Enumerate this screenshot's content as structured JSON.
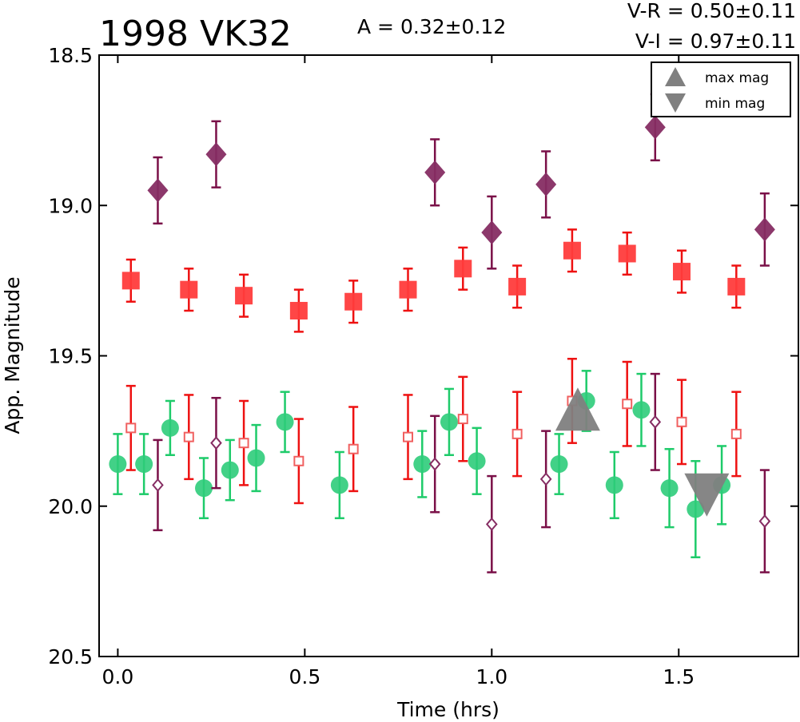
{
  "chart_data": {
    "type": "scatter",
    "title": "1998 VK32",
    "annotations": {
      "amplitude": "A  = 0.32±0.12",
      "v_minus_r": "V-R = 0.50±0.11",
      "v_minus_i": "V-I  = 0.97±0.11"
    },
    "xlabel": "Time (hrs)",
    "ylabel": "App. Magnitude",
    "xlim": [
      -0.05,
      1.82
    ],
    "ylim": [
      20.5,
      18.5
    ],
    "y_inverted": true,
    "x_ticks": [
      "0.0",
      "0.5",
      "1.0",
      "1.5"
    ],
    "x_tick_values": [
      0.0,
      0.5,
      1.0,
      1.5
    ],
    "y_ticks": [
      "18.5",
      "19.0",
      "19.5",
      "20.0",
      "20.5"
    ],
    "y_tick_values": [
      18.5,
      19.0,
      19.5,
      20.0,
      20.5
    ],
    "legend": {
      "placement": "top-right",
      "entries": [
        {
          "label": "max mag",
          "marker": "triangle-up",
          "color": "#808080"
        },
        {
          "label": "min mag",
          "marker": "triangle-down",
          "color": "#808080"
        }
      ]
    },
    "series": [
      {
        "marker": "diamond-filled",
        "color": "#862d63",
        "errcolor": "#7a1048",
        "points": [
          {
            "x": 0.107,
            "y": 18.95,
            "err": 0.11
          },
          {
            "x": 0.263,
            "y": 18.83,
            "err": 0.11
          },
          {
            "x": 0.848,
            "y": 18.89,
            "err": 0.11
          },
          {
            "x": 1.0,
            "y": 19.09,
            "err": 0.12
          },
          {
            "x": 1.145,
            "y": 18.93,
            "err": 0.11
          },
          {
            "x": 1.437,
            "y": 18.74,
            "err": 0.11
          },
          {
            "x": 1.73,
            "y": 19.08,
            "err": 0.12
          }
        ]
      },
      {
        "marker": "square-filled",
        "color": "#ff3c3c",
        "errcolor": "#ee1111",
        "points": [
          {
            "x": 0.035,
            "y": 19.25,
            "err": 0.07
          },
          {
            "x": 0.19,
            "y": 19.28,
            "err": 0.07
          },
          {
            "x": 0.337,
            "y": 19.3,
            "err": 0.07
          },
          {
            "x": 0.484,
            "y": 19.35,
            "err": 0.07
          },
          {
            "x": 0.63,
            "y": 19.32,
            "err": 0.07
          },
          {
            "x": 0.776,
            "y": 19.28,
            "err": 0.07
          },
          {
            "x": 0.923,
            "y": 19.21,
            "err": 0.07
          },
          {
            "x": 1.068,
            "y": 19.27,
            "err": 0.07
          },
          {
            "x": 1.215,
            "y": 19.15,
            "err": 0.07
          },
          {
            "x": 1.362,
            "y": 19.16,
            "err": 0.07
          },
          {
            "x": 1.508,
            "y": 19.22,
            "err": 0.07
          },
          {
            "x": 1.654,
            "y": 19.27,
            "err": 0.07
          }
        ]
      },
      {
        "marker": "circle-filled",
        "color": "#2ecc7a",
        "errcolor": "#1ecb6a",
        "points": [
          {
            "x": 0.0,
            "y": 19.86,
            "err": 0.1
          },
          {
            "x": 0.07,
            "y": 19.86,
            "err": 0.1
          },
          {
            "x": 0.14,
            "y": 19.74,
            "err": 0.09
          },
          {
            "x": 0.23,
            "y": 19.94,
            "err": 0.1
          },
          {
            "x": 0.3,
            "y": 19.88,
            "err": 0.1
          },
          {
            "x": 0.37,
            "y": 19.84,
            "err": 0.11
          },
          {
            "x": 0.447,
            "y": 19.72,
            "err": 0.1
          },
          {
            "x": 0.593,
            "y": 19.93,
            "err": 0.11
          },
          {
            "x": 0.814,
            "y": 19.86,
            "err": 0.11
          },
          {
            "x": 0.886,
            "y": 19.72,
            "err": 0.11
          },
          {
            "x": 0.96,
            "y": 19.85,
            "err": 0.11
          },
          {
            "x": 1.18,
            "y": 19.86,
            "err": 0.1
          },
          {
            "x": 1.253,
            "y": 19.65,
            "err": 0.1
          },
          {
            "x": 1.328,
            "y": 19.93,
            "err": 0.11
          },
          {
            "x": 1.4,
            "y": 19.68,
            "err": 0.12
          },
          {
            "x": 1.475,
            "y": 19.94,
            "err": 0.13
          },
          {
            "x": 1.545,
            "y": 20.01,
            "err": 0.16
          },
          {
            "x": 1.615,
            "y": 19.93,
            "err": 0.13
          }
        ]
      },
      {
        "marker": "square-open",
        "color": "#f06060",
        "errcolor": "#ee1111",
        "points": [
          {
            "x": 0.035,
            "y": 19.74,
            "err": 0.14
          },
          {
            "x": 0.19,
            "y": 19.77,
            "err": 0.14
          },
          {
            "x": 0.337,
            "y": 19.79,
            "err": 0.14
          },
          {
            "x": 0.484,
            "y": 19.85,
            "err": 0.14
          },
          {
            "x": 0.63,
            "y": 19.81,
            "err": 0.14
          },
          {
            "x": 0.776,
            "y": 19.77,
            "err": 0.14
          },
          {
            "x": 0.923,
            "y": 19.71,
            "err": 0.14
          },
          {
            "x": 1.068,
            "y": 19.76,
            "err": 0.14
          },
          {
            "x": 1.215,
            "y": 19.65,
            "err": 0.14
          },
          {
            "x": 1.362,
            "y": 19.66,
            "err": 0.14
          },
          {
            "x": 1.508,
            "y": 19.72,
            "err": 0.14
          },
          {
            "x": 1.654,
            "y": 19.76,
            "err": 0.14
          }
        ]
      },
      {
        "marker": "diamond-open",
        "color": "#862d63",
        "errcolor": "#7a1048",
        "points": [
          {
            "x": 0.107,
            "y": 19.93,
            "err": 0.15
          },
          {
            "x": 0.263,
            "y": 19.79,
            "err": 0.15
          },
          {
            "x": 0.848,
            "y": 19.86,
            "err": 0.16
          },
          {
            "x": 1.0,
            "y": 20.06,
            "err": 0.16
          },
          {
            "x": 1.145,
            "y": 19.91,
            "err": 0.16
          },
          {
            "x": 1.437,
            "y": 19.72,
            "err": 0.16
          },
          {
            "x": 1.73,
            "y": 20.05,
            "err": 0.17
          }
        ]
      }
    ],
    "extrema": [
      {
        "kind": "max",
        "marker": "triangle-up",
        "x": 1.23,
        "y": 19.68,
        "color": "#808080"
      },
      {
        "kind": "min",
        "marker": "triangle-down",
        "x": 1.575,
        "y": 19.96,
        "color": "#808080"
      }
    ]
  }
}
